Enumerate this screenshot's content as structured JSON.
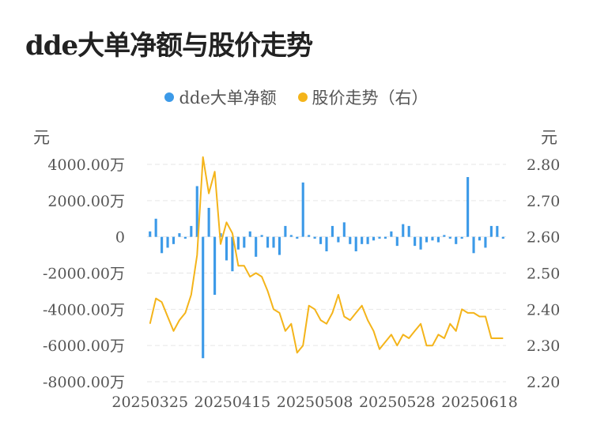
{
  "title": "dde大单净额与股价走势",
  "legend": {
    "series1": "dde大单净额",
    "series2": "股价走势（右）"
  },
  "left_unit": "元",
  "right_unit": "元",
  "colors": {
    "bar": "#3c9ae8",
    "line": "#f4b41a",
    "grid": "#e6e6e6"
  },
  "chart_data": {
    "type": "bar+line",
    "x": [
      "20250325",
      "20250326",
      "20250327",
      "20250328",
      "20250331",
      "20250401",
      "20250402",
      "20250403",
      "20250407",
      "20250408",
      "20250409",
      "20250410",
      "20250411",
      "20250414",
      "20250415",
      "20250416",
      "20250417",
      "20250418",
      "20250421",
      "20250422",
      "20250423",
      "20250424",
      "20250425",
      "20250428",
      "20250429",
      "20250430",
      "20250506",
      "20250507",
      "20250508",
      "20250509",
      "20250512",
      "20250513",
      "20250514",
      "20250515",
      "20250516",
      "20250519",
      "20250520",
      "20250521",
      "20250522",
      "20250523",
      "20250526",
      "20250527",
      "20250528",
      "20250529",
      "20250530",
      "20250603",
      "20250604",
      "20250605",
      "20250606",
      "20250609",
      "20250610",
      "20250611",
      "20250612",
      "20250613",
      "20250616",
      "20250617",
      "20250618",
      "20250619",
      "20250620",
      "20250623",
      "20250624"
    ],
    "x_tick_labels": [
      "20250325",
      "20250415",
      "20250508",
      "20250528",
      "20250618"
    ],
    "series": [
      {
        "name": "dde大单净额",
        "type": "bar",
        "axis": "left",
        "values": [
          300,
          1000,
          -900,
          -600,
          -400,
          200,
          -100,
          600,
          2800,
          -6700,
          1600,
          -3200,
          200,
          -1300,
          -1900,
          -700,
          -600,
          300,
          -1100,
          100,
          -600,
          -600,
          -1000,
          600,
          100,
          -100,
          3000,
          100,
          -100,
          -400,
          -800,
          600,
          -300,
          800,
          -400,
          -800,
          -400,
          -400,
          -200,
          -100,
          -100,
          300,
          -500,
          700,
          600,
          -500,
          -700,
          -300,
          -200,
          -300,
          100,
          -100,
          -400,
          -100,
          3300,
          -900,
          -200,
          -600,
          600,
          600,
          -100
        ]
      },
      {
        "name": "股价走势（右）",
        "type": "line",
        "axis": "right",
        "values": [
          2.36,
          2.43,
          2.42,
          2.38,
          2.34,
          2.37,
          2.39,
          2.44,
          2.55,
          2.82,
          2.72,
          2.78,
          2.58,
          2.64,
          2.61,
          2.52,
          2.52,
          2.49,
          2.5,
          2.49,
          2.45,
          2.4,
          2.39,
          2.34,
          2.36,
          2.28,
          2.3,
          2.41,
          2.4,
          2.37,
          2.36,
          2.39,
          2.44,
          2.38,
          2.37,
          2.39,
          2.41,
          2.37,
          2.34,
          2.29,
          2.31,
          2.33,
          2.3,
          2.33,
          2.32,
          2.34,
          2.36,
          2.3,
          2.3,
          2.33,
          2.32,
          2.36,
          2.34,
          2.4,
          2.39,
          2.39,
          2.38,
          2.38,
          2.32,
          2.32,
          2.32
        ]
      }
    ],
    "y_left": {
      "min": -8000,
      "max": 4000,
      "ticks": [
        "4000.00万",
        "2000.00万",
        "0",
        "-2000.00万",
        "-4000.00万",
        "-6000.00万",
        "-8000.00万"
      ]
    },
    "y_right": {
      "min": 2.2,
      "max": 2.8,
      "ticks": [
        "2.80",
        "2.70",
        "2.60",
        "2.50",
        "2.40",
        "2.30",
        "2.20"
      ]
    },
    "grid": true,
    "legend_position": "top"
  }
}
